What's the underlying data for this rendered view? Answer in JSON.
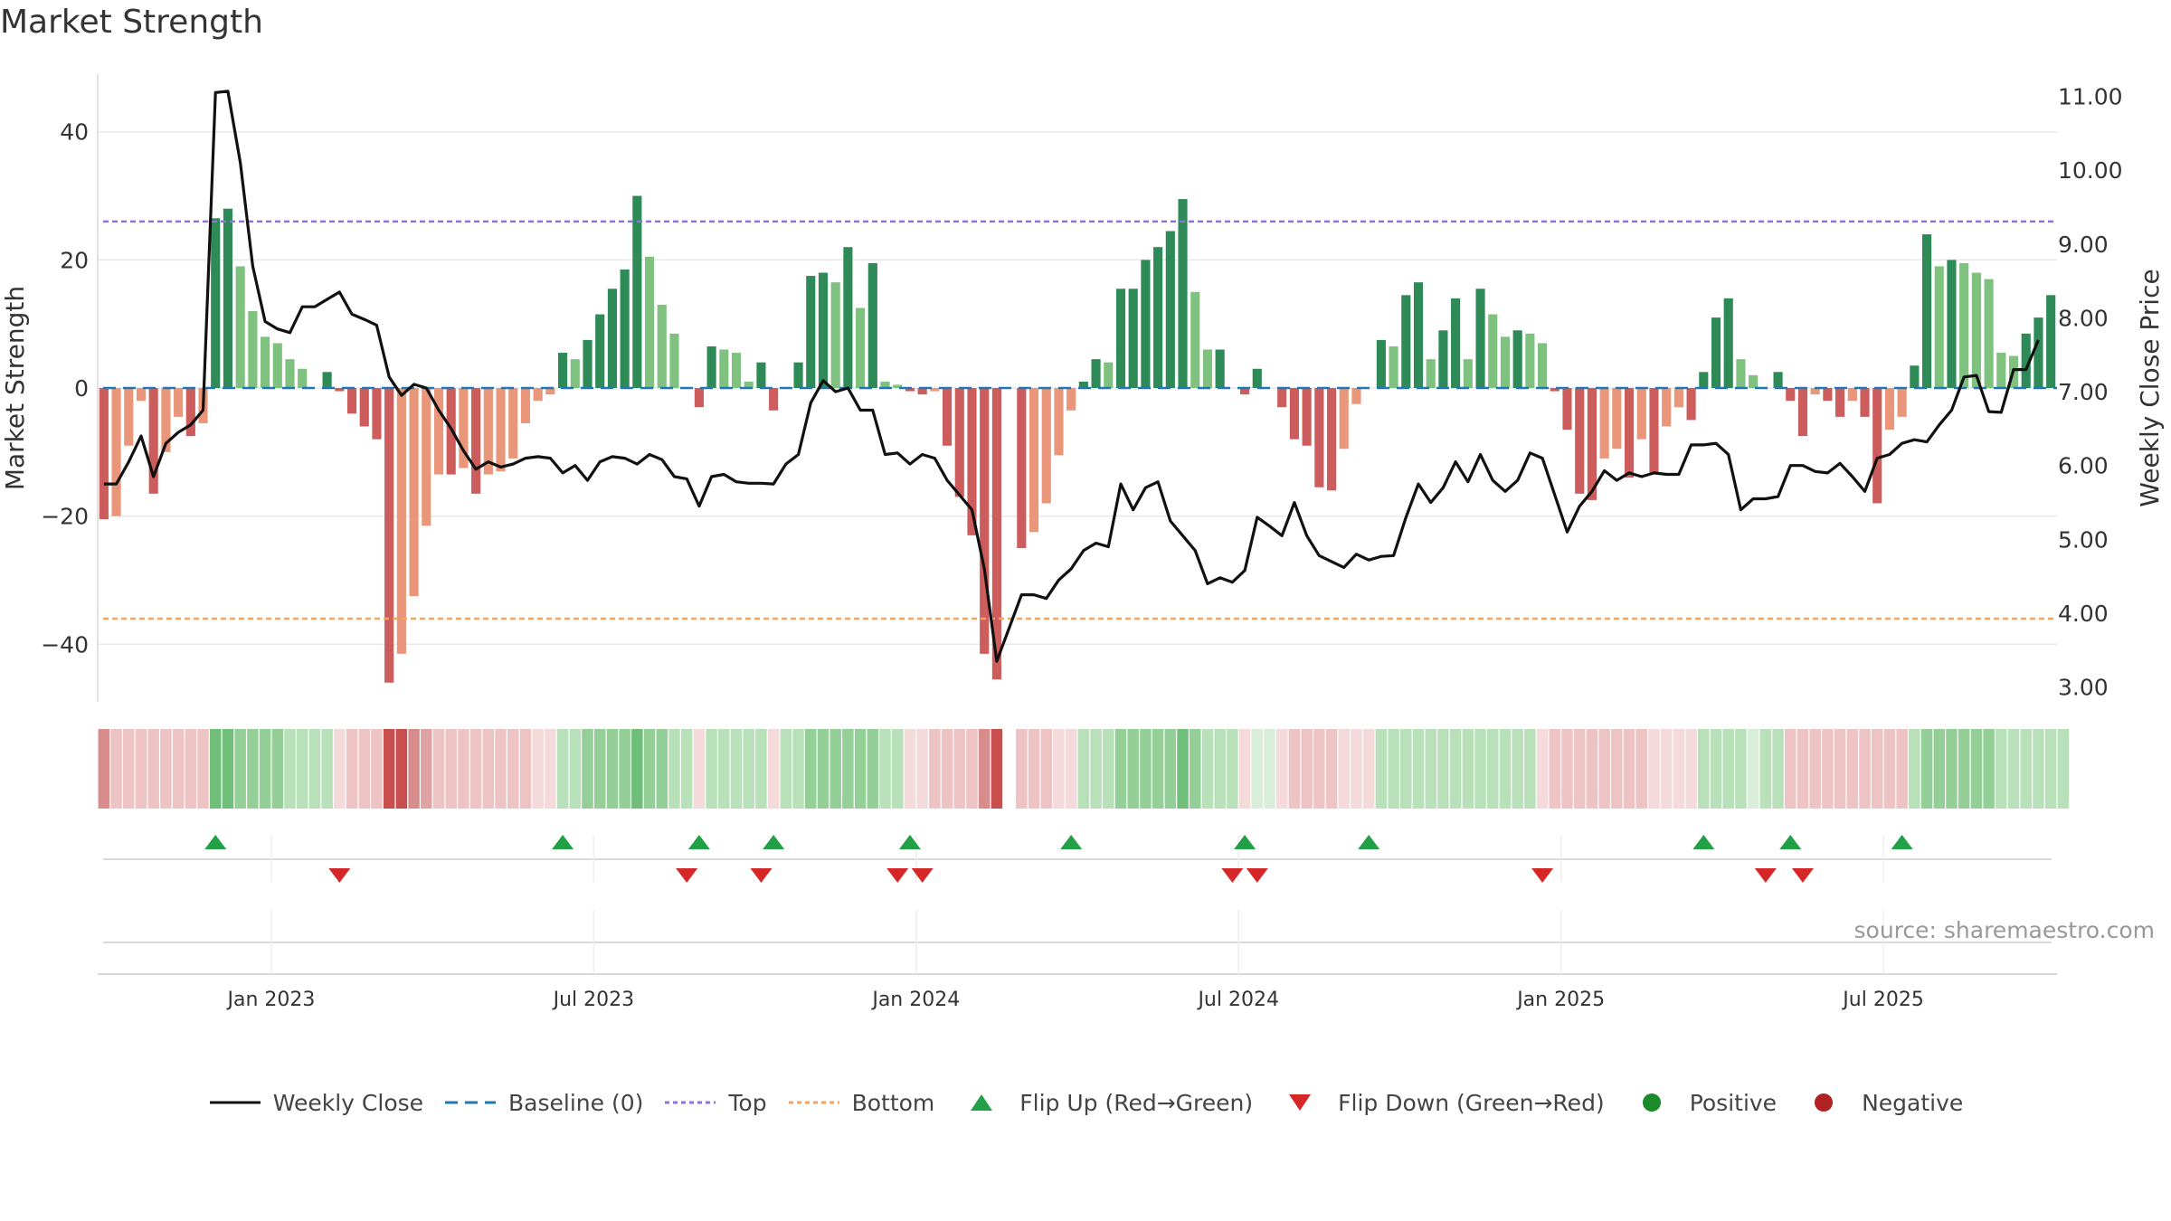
{
  "chart_data": {
    "type": "bar",
    "title": "Market Strength",
    "source": "source: sharemaestro.com",
    "ylabel_left": "Market Strength",
    "ylabel_right": "Weekly Close Price",
    "ylim_left": [
      -49,
      49
    ],
    "ylim_right": [
      2.8,
      11.3
    ],
    "yticks_left": [
      {
        "v": 40,
        "label": "40"
      },
      {
        "v": 20,
        "label": "20"
      },
      {
        "v": 0,
        "label": "0"
      },
      {
        "v": -20,
        "label": "−20"
      },
      {
        "v": -40,
        "label": "−40"
      }
    ],
    "yticks_right": [
      {
        "v": 11,
        "label": "11.00"
      },
      {
        "v": 10,
        "label": "10.00"
      },
      {
        "v": 9,
        "label": "9.00"
      },
      {
        "v": 8,
        "label": "8.00"
      },
      {
        "v": 7,
        "label": "7.00"
      },
      {
        "v": 6,
        "label": "6.00"
      },
      {
        "v": 5,
        "label": "5.00"
      },
      {
        "v": 4,
        "label": "4.00"
      },
      {
        "v": 3,
        "label": "3.00"
      }
    ],
    "x_ticks": [
      {
        "week": 14,
        "label": "Jan 2023"
      },
      {
        "week": 40,
        "label": "Jul 2023"
      },
      {
        "week": 66,
        "label": "Jan 2024"
      },
      {
        "week": 92,
        "label": "Jul 2024"
      },
      {
        "week": 118,
        "label": "Jan 2025"
      },
      {
        "week": 144,
        "label": "Jul 2025"
      }
    ],
    "top_line": 26,
    "bottom_line": -36,
    "baseline": 0,
    "strength": [
      -20.5,
      -20,
      -9,
      -2,
      -16.5,
      -10,
      -4.5,
      -7.5,
      -5.5,
      26.5,
      28,
      19,
      12,
      8,
      7,
      4.5,
      3,
      0,
      2.5,
      -0.5,
      -4,
      -6,
      -8,
      -46,
      -41.5,
      -32.5,
      -21.5,
      -13.5,
      -13.5,
      -12.5,
      -16.5,
      -13.5,
      -13,
      -11,
      -5.5,
      -2,
      -1,
      5.5,
      4.5,
      7.5,
      11.5,
      15.5,
      18.5,
      30,
      20.5,
      13,
      8.5,
      0,
      -3,
      6.5,
      6,
      5.5,
      1,
      4,
      -3.5,
      0,
      4,
      17.5,
      18,
      16.5,
      22,
      12.5,
      19.5,
      1,
      0.5,
      -0.5,
      -1,
      -0.5,
      -9,
      -17,
      -23,
      -41.5,
      -45.5,
      0,
      -25,
      -22.5,
      -18,
      -10.5,
      -3.5,
      1,
      4.5,
      4,
      15.5,
      15.5,
      20,
      22,
      24.5,
      29.5,
      15,
      6,
      6,
      0,
      -1,
      3,
      0,
      -3,
      -8,
      -9,
      -15.5,
      -16,
      -9.5,
      -2.5,
      0,
      7.5,
      6.5,
      14.5,
      16.5,
      4.5,
      9,
      14,
      4.5,
      15.5,
      11.5,
      8,
      9,
      8.5,
      7,
      -0.5,
      -6.5,
      -16.5,
      -17.5,
      -11,
      -9.5,
      -14,
      -8,
      -13.5,
      -6,
      -3,
      -5,
      2.5,
      11,
      14,
      4.5,
      2,
      0,
      2.5,
      -2,
      -7.5,
      -1,
      -2,
      -4.5,
      -2,
      -4.5,
      -18,
      -6.5,
      -4.5,
      3.5,
      24,
      19,
      20,
      19.5,
      18,
      17,
      5.5,
      5,
      8.5,
      11,
      14.5
    ],
    "close": [
      5.75,
      5.75,
      6.05,
      6.4,
      5.85,
      6.3,
      6.45,
      6.55,
      6.75,
      11.05,
      11.07,
      10.1,
      8.7,
      7.95,
      7.85,
      7.8,
      8.15,
      8.15,
      8.25,
      8.35,
      8.05,
      7.98,
      7.9,
      7.2,
      6.95,
      7.1,
      7.05,
      6.75,
      6.5,
      6.2,
      5.95,
      6.05,
      5.98,
      6.02,
      6.1,
      6.12,
      6.1,
      5.9,
      6,
      5.8,
      6.05,
      6.12,
      6.1,
      6.02,
      6.15,
      6.08,
      5.85,
      5.82,
      5.45,
      5.85,
      5.88,
      5.78,
      5.76,
      5.76,
      5.75,
      6.02,
      6.15,
      6.85,
      7.15,
      7,
      7.05,
      6.75,
      6.75,
      6.15,
      6.17,
      6.02,
      6.15,
      6.1,
      5.8,
      5.6,
      5.4,
      4.6,
      3.35,
      3.8,
      4.25,
      4.25,
      4.2,
      4.45,
      4.6,
      4.85,
      4.95,
      4.9,
      5.75,
      5.4,
      5.7,
      5.78,
      5.25,
      5.05,
      4.85,
      4.4,
      4.48,
      4.42,
      4.58,
      5.3,
      5.18,
      5.05,
      5.5,
      5.05,
      4.78,
      4.7,
      4.62,
      4.8,
      4.72,
      4.77,
      4.78,
      5.3,
      5.75,
      5.5,
      5.7,
      6.05,
      5.78,
      6.15,
      5.8,
      5.65,
      5.8,
      6.17,
      6.1,
      5.6,
      5.1,
      5.45,
      5.65,
      5.93,
      5.8,
      5.9,
      5.85,
      5.9,
      5.88,
      5.88,
      6.28,
      6.28,
      6.3,
      6.15,
      5.4,
      5.55,
      5.55,
      5.58,
      6,
      6,
      5.92,
      5.9,
      6.03,
      5.85,
      5.65,
      6.1,
      6.15,
      6.3,
      6.35,
      6.32,
      6.55,
      6.75,
      7.2,
      7.22,
      6.73,
      6.72,
      7.3,
      7.3,
      7.7
    ],
    "zones": [
      "neg-strong",
      "neg-light",
      "neg-light",
      "neg-light",
      "neg-light",
      "neg-light",
      "neg-light",
      "neg-light",
      "neg-light",
      "pos-strong",
      "pos-strong",
      "pos-mid",
      "pos-mid",
      "pos-mid",
      "pos-mid",
      "pos-light",
      "pos-light",
      "pos-light",
      "pos-light",
      "neg-faint",
      "neg-light",
      "neg-light",
      "neg-light",
      "neg-dark",
      "neg-dark",
      "neg-strong",
      "neg-mid",
      "neg-light",
      "neg-light",
      "neg-light",
      "neg-light",
      "neg-light",
      "neg-light",
      "neg-light",
      "neg-light",
      "neg-faint",
      "neg-faint",
      "pos-light",
      "pos-light",
      "pos-mid",
      "pos-mid",
      "pos-mid",
      "pos-mid",
      "pos-strong",
      "pos-mid",
      "pos-mid",
      "pos-light",
      "pos-light",
      "neg-faint",
      "pos-light",
      "pos-light",
      "pos-light",
      "pos-light",
      "pos-light",
      "neg-faint",
      "pos-light",
      "pos-light",
      "pos-mid",
      "pos-mid",
      "pos-mid",
      "pos-mid",
      "pos-mid",
      "pos-mid",
      "pos-light",
      "pos-light",
      "neg-faint",
      "neg-faint",
      "neg-light",
      "neg-light",
      "neg-light",
      "neg-light",
      "neg-strong",
      "neg-dark",
      "none",
      "neg-light",
      "neg-light",
      "neg-light",
      "neg-faint",
      "neg-faint",
      "pos-light",
      "pos-light",
      "pos-light",
      "pos-mid",
      "pos-mid",
      "pos-mid",
      "pos-mid",
      "pos-mid",
      "pos-strong",
      "pos-mid",
      "pos-light",
      "pos-light",
      "pos-light",
      "neg-faint",
      "pos-faint",
      "pos-faint",
      "neg-faint",
      "neg-light",
      "neg-light",
      "neg-light",
      "neg-light",
      "neg-faint",
      "neg-faint",
      "neg-faint",
      "pos-light",
      "pos-light",
      "pos-light",
      "pos-light",
      "pos-light",
      "pos-light",
      "pos-light",
      "pos-light",
      "pos-light",
      "pos-light",
      "pos-light",
      "pos-light",
      "pos-light",
      "neg-faint",
      "neg-light",
      "neg-light",
      "neg-light",
      "neg-light",
      "neg-light",
      "neg-light",
      "neg-light",
      "neg-light",
      "neg-faint",
      "neg-faint",
      "neg-faint",
      "neg-faint",
      "pos-light",
      "pos-light",
      "pos-light",
      "pos-light",
      "pos-faint",
      "pos-light",
      "pos-light",
      "neg-light",
      "neg-light",
      "neg-light",
      "neg-light",
      "neg-light",
      "neg-light",
      "neg-light",
      "neg-light",
      "neg-light",
      "neg-light",
      "pos-light",
      "pos-mid",
      "pos-mid",
      "pos-mid",
      "pos-mid",
      "pos-mid",
      "pos-mid",
      "pos-light",
      "pos-light",
      "pos-light",
      "pos-light",
      "pos-light",
      "pos-light"
    ],
    "flip_up_weeks": [
      9,
      37,
      48,
      54,
      65,
      78,
      92,
      102,
      129,
      136,
      145
    ],
    "flip_down_weeks": [
      19,
      47,
      53,
      64,
      66,
      91,
      93,
      116,
      134,
      137
    ],
    "legend": [
      {
        "key": "weekly-close",
        "label": "Weekly Close"
      },
      {
        "key": "baseline",
        "label": "Baseline (0)"
      },
      {
        "key": "top",
        "label": "Top"
      },
      {
        "key": "bottom",
        "label": "Bottom"
      },
      {
        "key": "flip-up",
        "label": "Flip Up (Red→Green)"
      },
      {
        "key": "flip-down",
        "label": "Flip Down (Green→Red)"
      },
      {
        "key": "positive",
        "label": "Positive"
      },
      {
        "key": "negative",
        "label": "Negative"
      }
    ],
    "colors": {
      "pos_dark": "#2e8b57",
      "pos_light": "#7fc27f",
      "neg_dark": "#cd5c5c",
      "neg_light": "#e9967a",
      "close_line": "#111111",
      "baseline": "#1f77b4",
      "top": "#9370db",
      "bottom": "#f4a460",
      "flip_up": "#22a045",
      "flip_down": "#d62728",
      "positive_dot": "#1a8a2a",
      "negative_dot": "#b22222",
      "grid": "#e8e8e8",
      "zone_pos_strong": "#6fbf7a",
      "zone_pos_mid": "#94cf98",
      "zone_pos_light": "#b8e0b9",
      "zone_pos_faint": "#d8eed9",
      "zone_neg_dark": "#c94f4f",
      "zone_neg_strong": "#d98c8c",
      "zone_neg_mid": "#e0a3a3",
      "zone_neg_light": "#eec3c3",
      "zone_neg_faint": "#f4dada"
    }
  }
}
